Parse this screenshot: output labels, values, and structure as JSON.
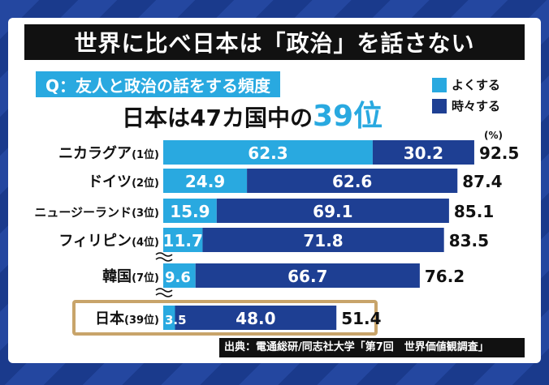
{
  "title": "世界に比べ日本は「政治」を話さない",
  "question": "Q：友人と政治の話をする頻度",
  "headline": {
    "prefix": "日本は47カ国中の",
    "accent": "39位"
  },
  "unit_label": "(%)",
  "source": "出典：電通総研/同志社大学「第7回　世界価値観調査」",
  "colors": {
    "often": "#29a9e0",
    "sometimes": "#1e3f93",
    "highlight_border": "#c8a46a"
  },
  "chart_data": {
    "type": "bar",
    "orientation": "horizontal",
    "stacked": true,
    "categories": [
      {
        "country": "ニカラグア",
        "rank": "(1位)"
      },
      {
        "country": "ドイツ",
        "rank": "(2位)"
      },
      {
        "country": "ニュージーランド",
        "rank": "(3位)"
      },
      {
        "country": "フィリピン",
        "rank": "(4位)"
      },
      {
        "country": "韓国",
        "rank": "(7位)"
      },
      {
        "country": "日本",
        "rank": "(39位)"
      }
    ],
    "series": [
      {
        "name": "よくする",
        "values": [
          62.3,
          24.9,
          15.9,
          11.7,
          9.6,
          3.5
        ]
      },
      {
        "name": "時々する",
        "values": [
          30.2,
          62.6,
          69.1,
          71.8,
          66.7,
          48.0
        ]
      }
    ],
    "totals": [
      92.5,
      87.4,
      85.1,
      83.5,
      76.2,
      51.4
    ],
    "value_labels": {
      "often": [
        "62.3",
        "24.9",
        "15.9",
        "11.7",
        "9.6",
        "3.5"
      ],
      "sometimes": [
        "30.2",
        "62.6",
        "69.1",
        "71.8",
        "66.7",
        "48.0"
      ],
      "totals": [
        "92.5",
        "87.4",
        "85.1",
        "83.5",
        "76.2",
        "51.4"
      ]
    },
    "highlight": "日本",
    "axis_breaks_after": [
      "フィリピン",
      "韓国"
    ],
    "legend_position": "top-right",
    "xlim": [
      0,
      100
    ]
  }
}
